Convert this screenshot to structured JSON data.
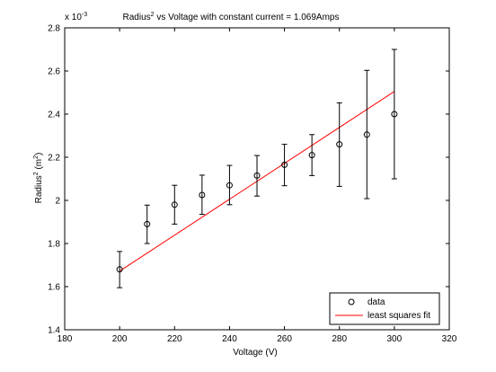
{
  "chart_data": {
    "type": "scatter",
    "title_parts": {
      "prefix": "Radius",
      "superscript": "2",
      "suffix": " vs Voltage with constant current = 1.069Amps"
    },
    "xlabel": "Voltage (V)",
    "ylabel_parts": {
      "prefix": "Radius",
      "sup1": "2",
      "middle": " (m",
      "sup2": "2",
      "suffix": ")"
    },
    "xlim": [
      180,
      320
    ],
    "ylim": [
      1.4,
      2.8
    ],
    "y_multiplier": {
      "base": "x 10",
      "exponent": "-3"
    },
    "xticks": [
      180,
      200,
      220,
      240,
      260,
      280,
      300,
      320
    ],
    "yticks": [
      1.4,
      1.6,
      1.8,
      2.0,
      2.2,
      2.4,
      2.6,
      2.8
    ],
    "ytick_labels": [
      "1.4",
      "1.6",
      "1.8",
      "2",
      "2.2",
      "2.4",
      "2.6",
      "2.8"
    ],
    "grid": false,
    "legend_position": "bottom-right",
    "series": [
      {
        "name": "data",
        "style": "circle-markers-with-errorbars",
        "color": "#000000",
        "x": [
          200,
          210,
          220,
          230,
          240,
          250,
          260,
          270,
          280,
          290,
          300
        ],
        "y": [
          1.68,
          1.89,
          1.98,
          2.025,
          2.07,
          2.115,
          2.165,
          2.21,
          2.26,
          2.305,
          2.4
        ],
        "err_low": [
          1.595,
          1.8,
          1.89,
          1.935,
          1.98,
          2.02,
          2.068,
          2.115,
          2.065,
          2.008,
          2.1
        ],
        "err_high": [
          1.763,
          1.978,
          2.07,
          2.117,
          2.162,
          2.208,
          2.26,
          2.305,
          2.452,
          2.603,
          2.7
        ]
      },
      {
        "name": "least squares fit",
        "style": "line",
        "color": "#ff0000",
        "x": [
          200,
          300
        ],
        "y": [
          1.672,
          2.505
        ]
      }
    ]
  }
}
